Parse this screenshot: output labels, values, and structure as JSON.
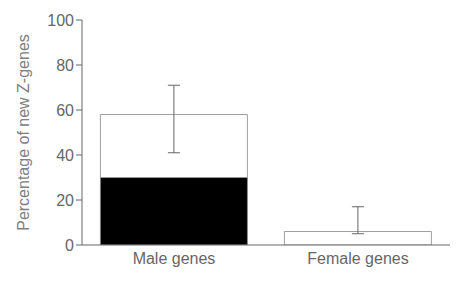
{
  "chart_data": {
    "type": "bar",
    "stacked": true,
    "categories": [
      "Male genes",
      "Female genes"
    ],
    "series": [
      {
        "color": "#000000",
        "values": [
          30,
          0
        ]
      },
      {
        "color": "#ffffff",
        "values": [
          28,
          6
        ],
        "error_minus": [
          17,
          1
        ],
        "error_plus": [
          13,
          11
        ]
      }
    ],
    "ylabel": "Percentage of new Z-genes",
    "ylim": [
      0,
      100
    ],
    "yticks": [
      0,
      20,
      40,
      60,
      80,
      100
    ],
    "grid": false
  }
}
